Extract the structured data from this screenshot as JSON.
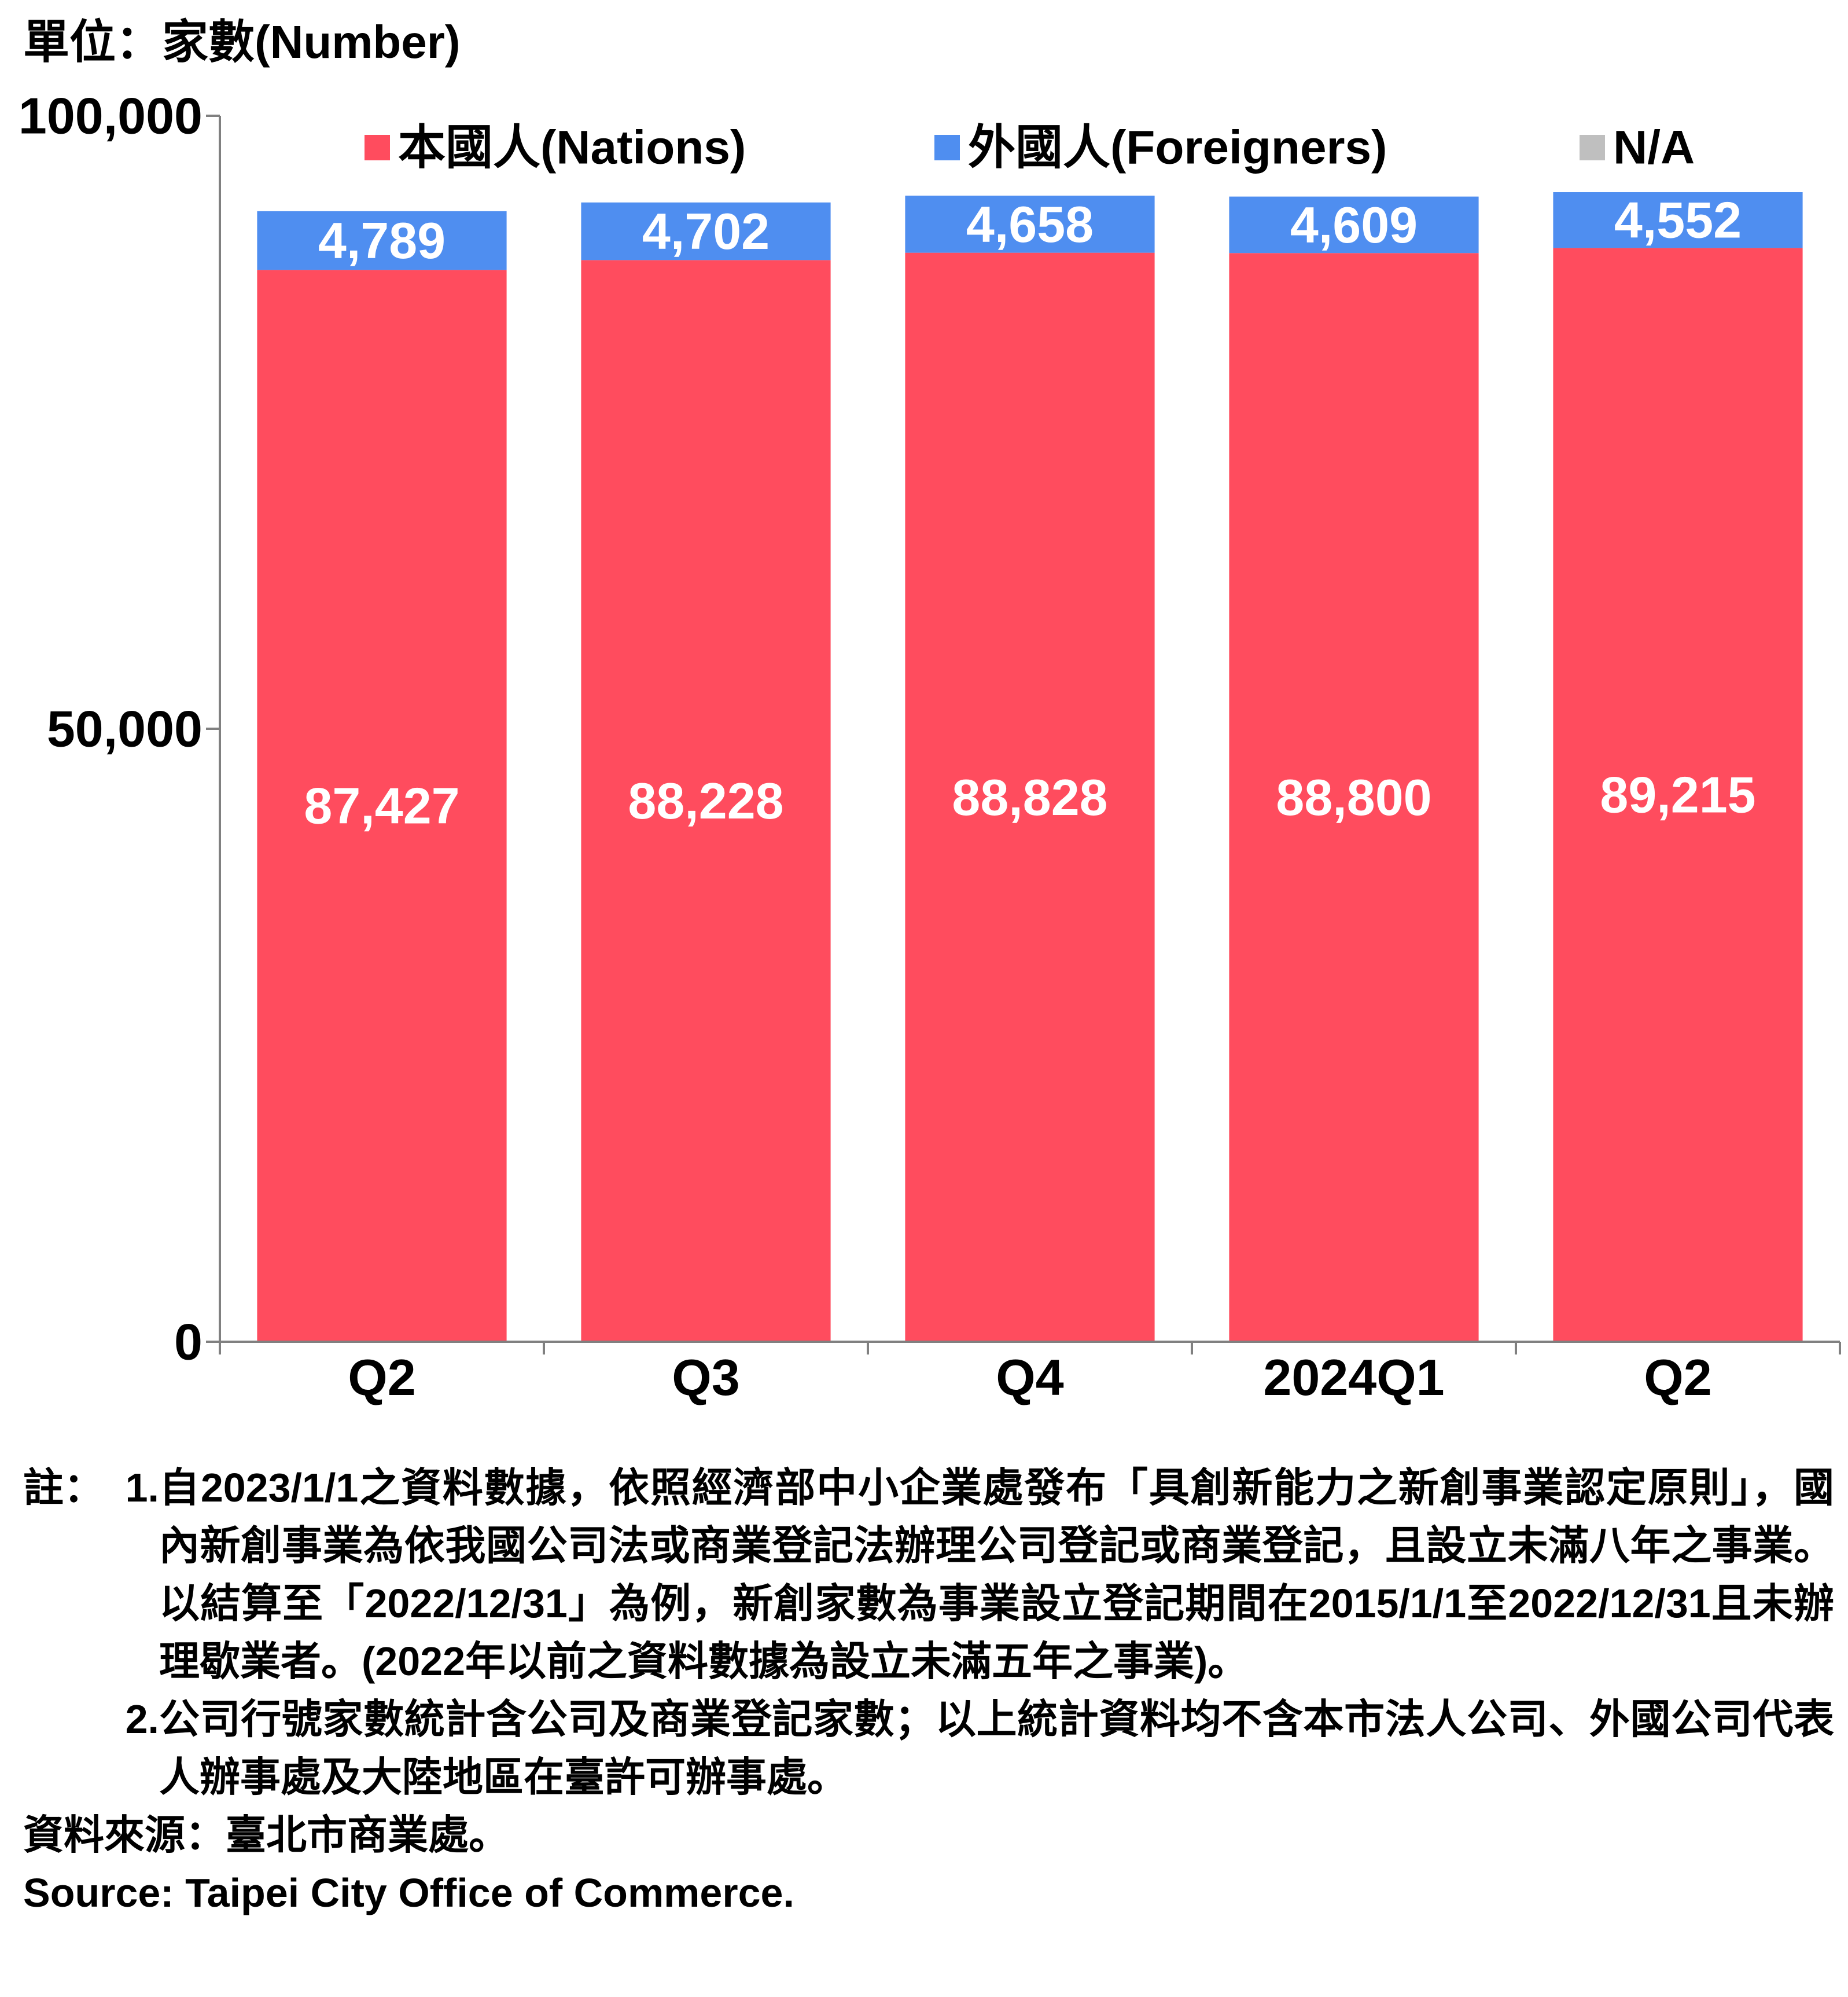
{
  "unit_label": "單位：家數(Number)",
  "chart_data": {
    "type": "bar",
    "stacked": true,
    "categories": [
      "Q2",
      "Q3",
      "Q4",
      "2024Q1",
      "Q2"
    ],
    "series": [
      {
        "name": "本國人(Nations)",
        "color": "#ff4c5e",
        "values": [
          87427,
          88228,
          88828,
          88800,
          89215
        ],
        "labels": [
          "87,427",
          "88,228",
          "88,828",
          "88,800",
          "89,215"
        ],
        "label_color": "#ffffff"
      },
      {
        "name": "外國人(Foreigners)",
        "color": "#4f8ef0",
        "values": [
          4789,
          4702,
          4658,
          4609,
          4552
        ],
        "labels": [
          "4,789",
          "4,702",
          "4,658",
          "4,609",
          "4,552"
        ],
        "label_color": "#ffffff"
      },
      {
        "name": "N/A",
        "color": "#bfbfbf",
        "values": [
          0,
          0,
          0,
          0,
          0
        ],
        "labels": []
      }
    ],
    "ylim": [
      0,
      100000
    ],
    "yticks": [
      0,
      50000,
      100000
    ],
    "ytick_labels": [
      "0",
      "50,000",
      "100,000"
    ],
    "legend_position": "top",
    "grid": false
  },
  "notes": {
    "prefix": "註：",
    "items": [
      {
        "num": "1.",
        "text": "自2023/1/1之資料數據，依照經濟部中小企業處發布「具創新能力之新創事業認定原則」，國內新創事業為依我國公司法或商業登記法辦理公司登記或商業登記，且設立未滿八年之事業。以結算至「2022/12/31」為例，新創家數為事業設立登記期間在2015/1/1至2022/12/31且未辦理歇業者。(2022年以前之資料數據為設立未滿五年之事業)。"
      },
      {
        "num": "2.",
        "text": "公司行號家數統計含公司及商業登記家數；以上統計資料均不含本市法人公司、外國公司代表人辦事處及大陸地區在臺許可辦事處。"
      }
    ],
    "source_zh": "資料來源：臺北市商業處。",
    "source_en": "Source: Taipei City Office of Commerce."
  }
}
